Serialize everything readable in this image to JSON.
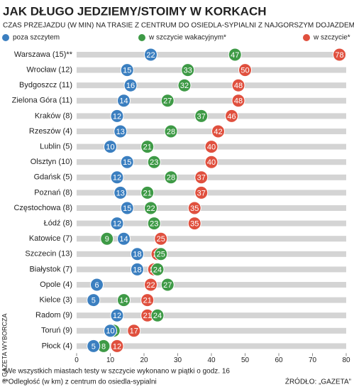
{
  "chart_data": {
    "type": "dot",
    "title": "JAK DŁUGO JEDZIEMY/STOIMY W KORKACH",
    "subtitle": "CZAS PRZEJAZDU (W MIN) NA TRASIE Z CENTRUM DO OSIEDLA-SYPIALNI Z NAJGORSZYM DOJAZDEM:",
    "categories": [
      "Warszawa (15)**",
      "Wrocław (12)",
      "Bydgoszcz (11)",
      "Zielona Góra (11)",
      "Kraków (8)",
      "Rzeszów (4)",
      "Lublin (5)",
      "Olsztyn (10)",
      "Gdańsk (5)",
      "Poznań (8)",
      "Częstochowa (8)",
      "Łódź (8)",
      "Katowice (7)",
      "Szczecin (13)",
      "Białystok (7)",
      "Opole (4)",
      "Kielce (3)",
      "Radom (9)",
      "Toruń (9)",
      "Płock (4)"
    ],
    "series": [
      {
        "name": "poza szczytem",
        "color": "#3b7fc0",
        "values": [
          22,
          15,
          16,
          14,
          12,
          13,
          10,
          15,
          12,
          13,
          15,
          12,
          14,
          18,
          18,
          6,
          5,
          12,
          10,
          5
        ]
      },
      {
        "name": "w szczycie wakacyjnym*",
        "color": "#3e9a46",
        "values": [
          47,
          33,
          32,
          27,
          37,
          28,
          21,
          23,
          28,
          21,
          22,
          23,
          9,
          25,
          24,
          27,
          14,
          24,
          11,
          8
        ]
      },
      {
        "name": "w szczycie*",
        "color": "#e0503e",
        "values": [
          78,
          50,
          48,
          48,
          46,
          42,
          40,
          40,
          37,
          37,
          35,
          35,
          25,
          24,
          23,
          22,
          21,
          21,
          17,
          12
        ]
      }
    ],
    "xlim": [
      0,
      80
    ],
    "xticks": [
      0,
      10,
      20,
      30,
      40,
      50,
      60,
      70,
      80
    ],
    "footnotes": [
      "*We wszystkich miastach testy w szczycie wykonano w piątki o godz. 16",
      "**Odległość (w km) z centrum do osiedla-sypialni"
    ],
    "source": "ŹRÓDŁO: „GAZETA”",
    "credit": "© GAZETA WYBORCZA"
  }
}
